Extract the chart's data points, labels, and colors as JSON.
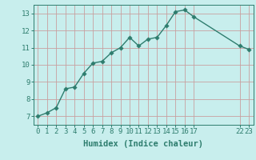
{
  "x": [
    0,
    1,
    2,
    3,
    4,
    5,
    6,
    7,
    8,
    9,
    10,
    11,
    12,
    13,
    14,
    15,
    16,
    17,
    22,
    23
  ],
  "y": [
    7.0,
    7.2,
    7.5,
    8.6,
    8.7,
    9.5,
    10.1,
    10.2,
    10.7,
    11.0,
    11.6,
    11.1,
    11.5,
    11.6,
    12.3,
    13.1,
    13.2,
    12.8,
    11.1,
    10.9
  ],
  "xlabel": "Humidex (Indice chaleur)",
  "line_color": "#2e7d6e",
  "bg_color": "#c8eeed",
  "grid_color": "#c8a0a0",
  "xlim": [
    -0.5,
    23.5
  ],
  "ylim": [
    6.5,
    13.5
  ],
  "xtick_positions": [
    0,
    1,
    2,
    3,
    4,
    5,
    6,
    7,
    8,
    9,
    10,
    11,
    12,
    13,
    14,
    15,
    16,
    17,
    22,
    23
  ],
  "xtick_labels": [
    "0",
    "1",
    "2",
    "3",
    "4",
    "5",
    "6",
    "7",
    "8",
    "9",
    "10",
    "11",
    "12",
    "13",
    "14",
    "15",
    "16",
    "17",
    "22",
    "23"
  ],
  "yticks": [
    7,
    8,
    9,
    10,
    11,
    12,
    13
  ],
  "marker_size": 2.8,
  "linewidth": 1.0,
  "tick_fontsize": 6.5,
  "xlabel_fontsize": 7.5
}
